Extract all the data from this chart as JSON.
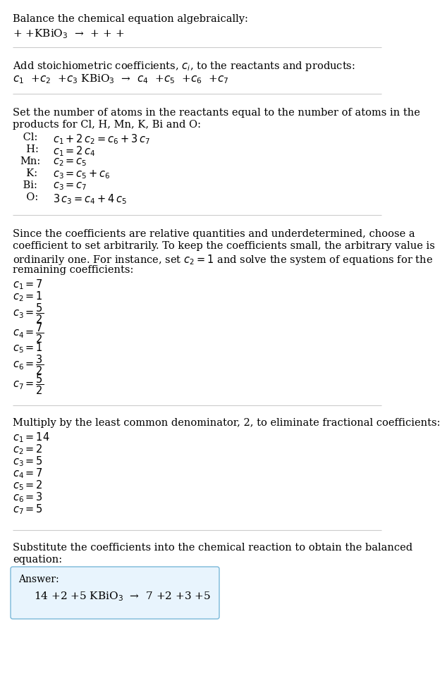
{
  "bg_color": "#ffffff",
  "text_color": "#000000",
  "line_color": "#cccccc",
  "answer_box_bg": "#e8f4fd",
  "answer_box_edge": "#7ab8d9",
  "fs": 10.5,
  "sections": {
    "s1_heading": "Balance the chemical equation algebraically:",
    "s1_eq": "+ +KBiO$_3$  →  + + +",
    "s2_heading": "Add stoichiometric coefficients, $c_i$, to the reactants and products:",
    "s2_eq": "$c_1$  +$c_2$  +$c_3$ KBiO$_3$  →  $c_4$  +$c_5$  +$c_6$  +$c_7$",
    "s3_heading1": "Set the number of atoms in the reactants equal to the number of atoms in the",
    "s3_heading2": "products for Cl, H, Mn, K, Bi and O:",
    "s4_heading1": "Since the coefficients are relative quantities and underdetermined, choose a",
    "s4_heading2": "coefficient to set arbitrarily. To keep the coefficients small, the arbitrary value is",
    "s4_heading3": "ordinarily one. For instance, set $c_2 = 1$ and solve the system of equations for the",
    "s4_heading4": "remaining coefficients:",
    "s5_heading": "Multiply by the least common denominator, 2, to eliminate fractional coefficients:",
    "s6_heading1": "Substitute the coefficients into the chemical reaction to obtain the balanced",
    "s6_heading2": "equation:",
    "answer_label": "Answer:",
    "answer_eq": "14 +2 +5 KBiO$_3$  →  7 +2 +3 +5"
  },
  "atom_eqs": [
    [
      " Cl:",
      "$c_1 + 2\\,c_2 = c_6 + 3\\,c_7$"
    ],
    [
      "  H:",
      "$c_1 = 2\\,c_4$"
    ],
    [
      "Mn:",
      "$c_2 = c_5$"
    ],
    [
      "  K:",
      "$c_3 = c_5 + c_6$"
    ],
    [
      " Bi:",
      "$c_3 = c_7$"
    ],
    [
      "  O:",
      "$3\\,c_3 = c_4 + 4\\,c_5$"
    ]
  ],
  "coeffs4": [
    [
      "$c_1 = 7$",
      false
    ],
    [
      "$c_2 = 1$",
      false
    ],
    [
      "$c_3 = \\dfrac{5}{2}$",
      true
    ],
    [
      "$c_4 = \\dfrac{7}{2}$",
      true
    ],
    [
      "$c_5 = 1$",
      false
    ],
    [
      "$c_6 = \\dfrac{3}{2}$",
      true
    ],
    [
      "$c_7 = \\dfrac{5}{2}$",
      true
    ]
  ],
  "coeffs5": [
    "$c_1 = 14$",
    "$c_2 = 2$",
    "$c_3 = 5$",
    "$c_4 = 7$",
    "$c_5 = 2$",
    "$c_6 = 3$",
    "$c_7 = 5$"
  ]
}
